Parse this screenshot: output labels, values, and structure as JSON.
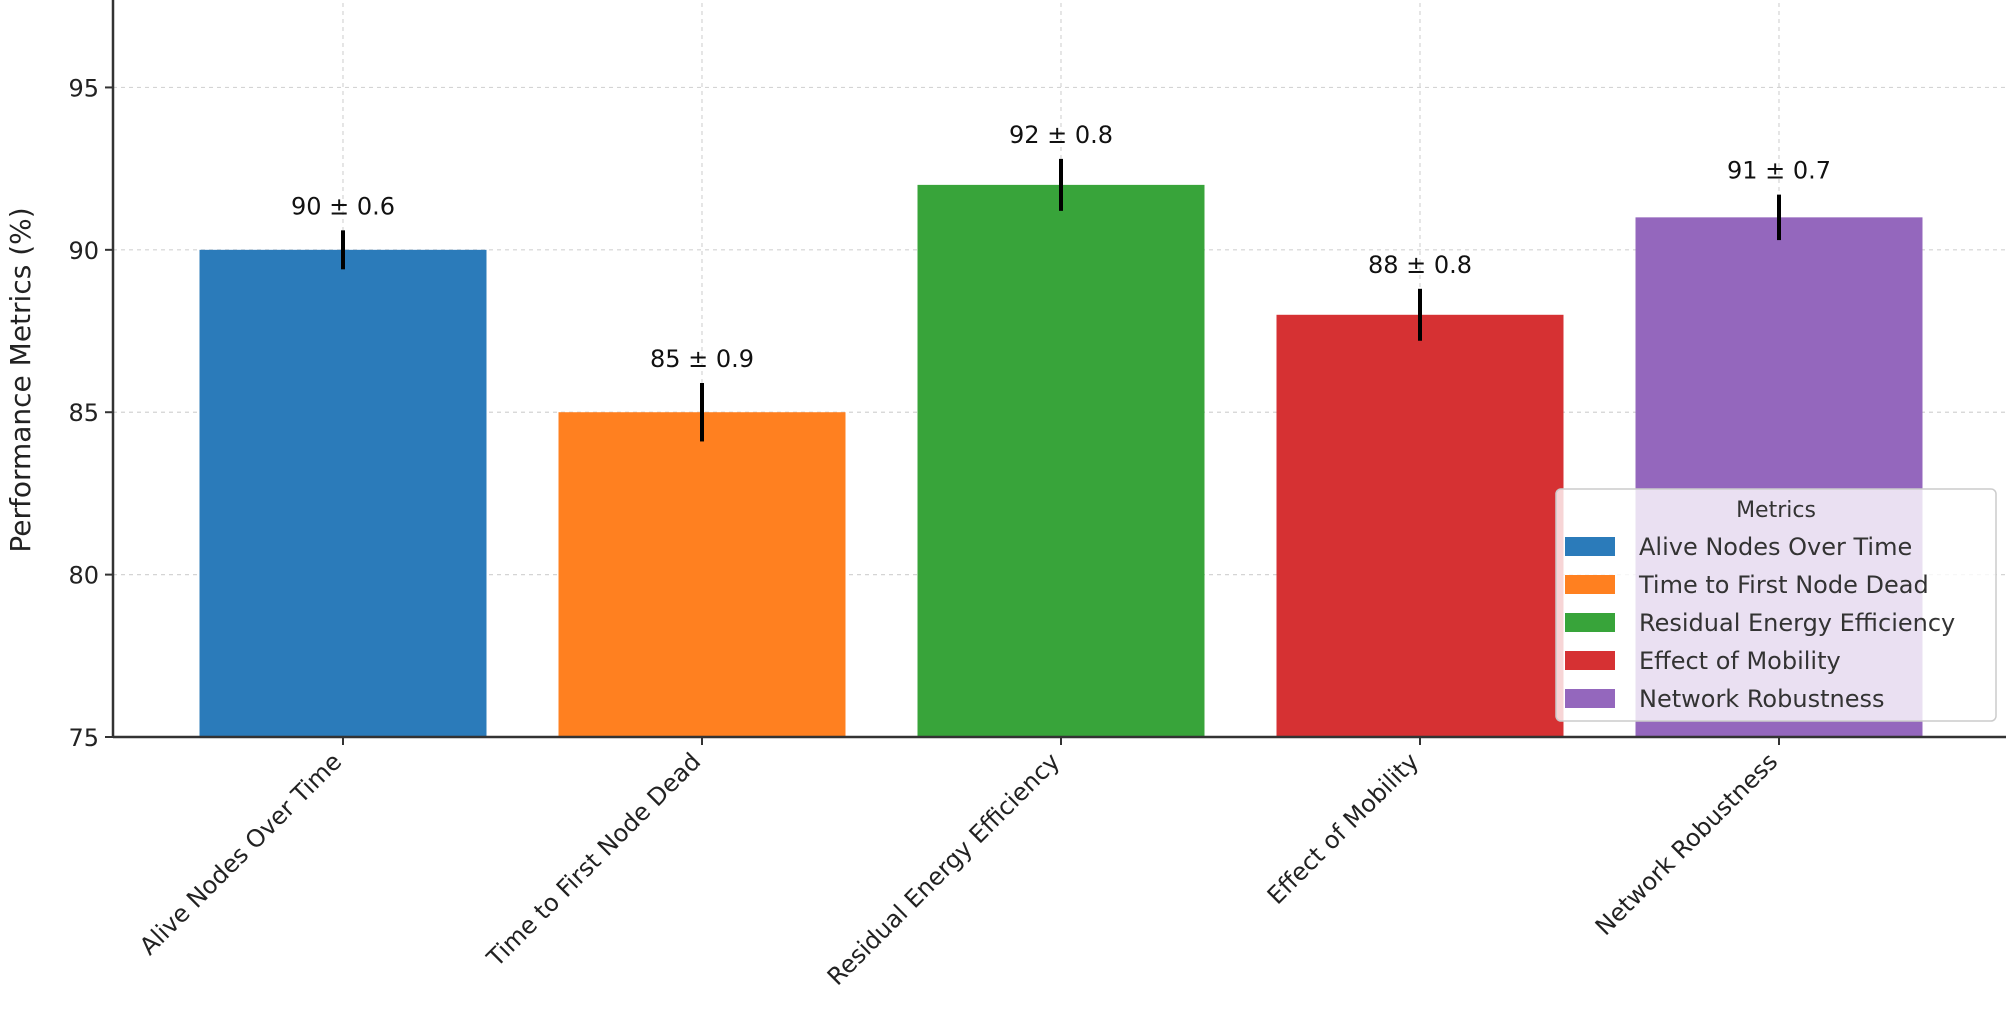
{
  "chart_data": {
    "type": "bar",
    "title": "",
    "xlabel": "",
    "ylabel": "Performance Metrics (%)",
    "categories": [
      "Alive Nodes Over Time",
      "Time to First Node Dead",
      "Residual Energy Efficiency",
      "Effect of Mobility",
      "Network Robustness"
    ],
    "values": [
      90,
      85,
      92,
      88,
      91
    ],
    "errors": [
      0.6,
      0.9,
      0.8,
      0.8,
      0.7
    ],
    "data_labels": [
      "90 ± 0.6",
      "85 ± 0.9",
      "92 ± 0.8",
      "88 ± 0.8",
      "91 ± 0.7"
    ],
    "colors": [
      "#2b7bba",
      "#ff8020",
      "#38a43a",
      "#d63133",
      "#9467bd"
    ],
    "ylim": [
      75,
      97.6
    ],
    "yticks": [
      75,
      80,
      85,
      90,
      95
    ],
    "grid": true,
    "legend": {
      "title": "Metrics",
      "placement": "lower-right",
      "entries": [
        "Alive Nodes Over Time",
        "Time to First Node Dead",
        "Residual Energy Efficiency",
        "Effect of Mobility",
        "Network Robustness"
      ]
    }
  }
}
